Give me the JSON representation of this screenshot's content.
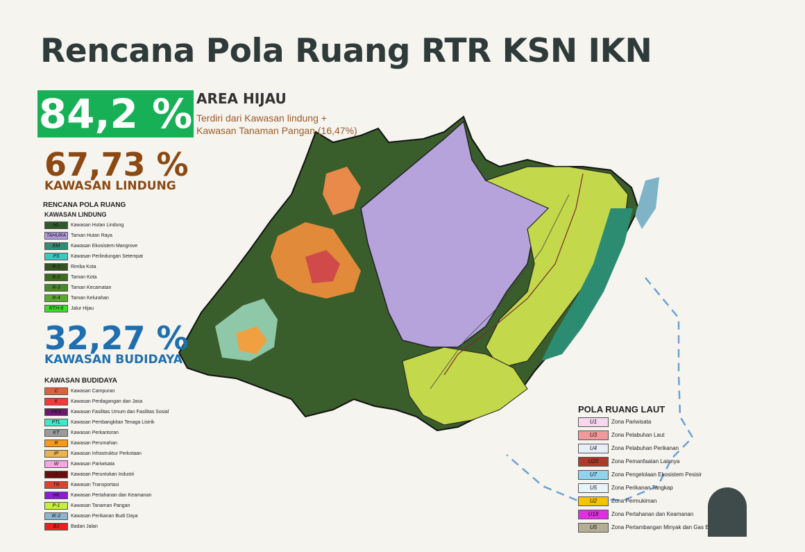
{
  "title": "Rencana Pola Ruang RTR KSN IKN",
  "area_hijau": {
    "percent": "84,2 %",
    "heading": "AREA HIJAU",
    "description_line1": "Terdiri dari Kawasan lindung +",
    "description_line2": "Kawasan Tanaman Pangan (16,47%)"
  },
  "lindung": {
    "percent": "67,73 %",
    "label": "KAWASAN LINDUNG",
    "color": "#8b4a14"
  },
  "budidaya": {
    "percent": "32,27 %",
    "label": "KAWASAN BUDIDAYA",
    "color": "#1f6fb0"
  },
  "legend_lindung": {
    "heading1": "RENCANA POLA RUANG",
    "heading2": "KAWASAN LINDUNG",
    "items": [
      {
        "code": "HL",
        "label": "Kawasan Hutan Lindung",
        "color": "#2f5a2c"
      },
      {
        "code": "TAHURA",
        "label": "Taman Hutan Raya",
        "color": "#b49be0"
      },
      {
        "code": "EM",
        "label": "Kawasan Ekosistem Mangrove",
        "color": "#2a8f74"
      },
      {
        "code": "PS",
        "label": "Kawasan Perlindungan Setempat",
        "color": "#3cc7c0"
      },
      {
        "code": "R-1",
        "label": "Rimba Kota",
        "color": "#355222"
      },
      {
        "code": "R-2",
        "label": "Taman Kota",
        "color": "#3d6b1f"
      },
      {
        "code": "R-3",
        "label": "Taman Kecamatan",
        "color": "#4a8a25"
      },
      {
        "code": "R-4",
        "label": "Taman Kelurahan",
        "color": "#5aa82c"
      },
      {
        "code": "RTH-8",
        "label": "Jalur Hijau",
        "color": "#39e022"
      }
    ]
  },
  "legend_budidaya": {
    "heading": "KAWASAN BUDIDAYA",
    "items": [
      {
        "code": "C",
        "label": "Kawasan Campuran",
        "color": "#d9643a"
      },
      {
        "code": "K",
        "label": "Kawasan Perdagangan dan Jasa",
        "color": "#f23a3a"
      },
      {
        "code": "PKS",
        "label": "Kawasan Fasilitas Umum dan Fasilitas Sosial",
        "color": "#6a1a6a"
      },
      {
        "code": "PTL",
        "label": "Kawasan Pembangkitan Tenaga Listrik",
        "color": "#3fe8c8"
      },
      {
        "code": "KT",
        "label": "Kawasan Perkantoran",
        "color": "#9a9a9a"
      },
      {
        "code": "R",
        "label": "Kawasan Perumahan",
        "color": "#f59a1a"
      },
      {
        "code": "IP",
        "label": "Kawasan Infrastruktur Perkotaan",
        "color": "#e8b450"
      },
      {
        "code": "W",
        "label": "Kawasan Pariwisata",
        "color": "#f2a6e6"
      },
      {
        "code": "I",
        "label": "Kawasan Peruntukan Industri",
        "color": "#6a0d0d"
      },
      {
        "code": "TR",
        "label": "Kawasan Transportasi",
        "color": "#d8452a"
      },
      {
        "code": "HK",
        "label": "Kawasan Pertahanan dan Keamanan",
        "color": "#8a1fd1"
      },
      {
        "code": "P-1",
        "label": "Kawasan Tanaman Pangan",
        "color": "#c6ef3a"
      },
      {
        "code": "IK-2",
        "label": "Kawasan Perikanan Budi Daya",
        "color": "#8fb4cf"
      },
      {
        "code": "BJ",
        "label": "Badan Jalan",
        "color": "#e82020"
      }
    ]
  },
  "legend_laut": {
    "heading": "POLA RUANG LAUT",
    "items": [
      {
        "code": "U1",
        "label": "Zona Pariwisata",
        "color": "#f7d6ee"
      },
      {
        "code": "U3",
        "label": "Zona Pelabuhan Laut",
        "color": "#f29a9a"
      },
      {
        "code": "U4",
        "label": "Zona Pelabuhan Perikanan",
        "color": "#e8eef8"
      },
      {
        "code": "U20",
        "label": "Zona Pemanfaatan Lainnya",
        "color": "#b03a2a"
      },
      {
        "code": "U7",
        "label": "Zona Pengelolaan Ekosistem Pesisir",
        "color": "#8fd3ef"
      },
      {
        "code": "U5",
        "label": "Zona Perikanan Tangkap",
        "color": "#e8f2fb"
      },
      {
        "code": "U2",
        "label": "Zona Permukiman",
        "color": "#f5c400"
      },
      {
        "code": "U18",
        "label": "Zona Pertahanan dan Keamanan",
        "color": "#e22ee2"
      },
      {
        "code": "U5",
        "label": "Zona Pertambangan Minyak dan Gas Bumi",
        "color": "#b3ae94"
      }
    ]
  }
}
